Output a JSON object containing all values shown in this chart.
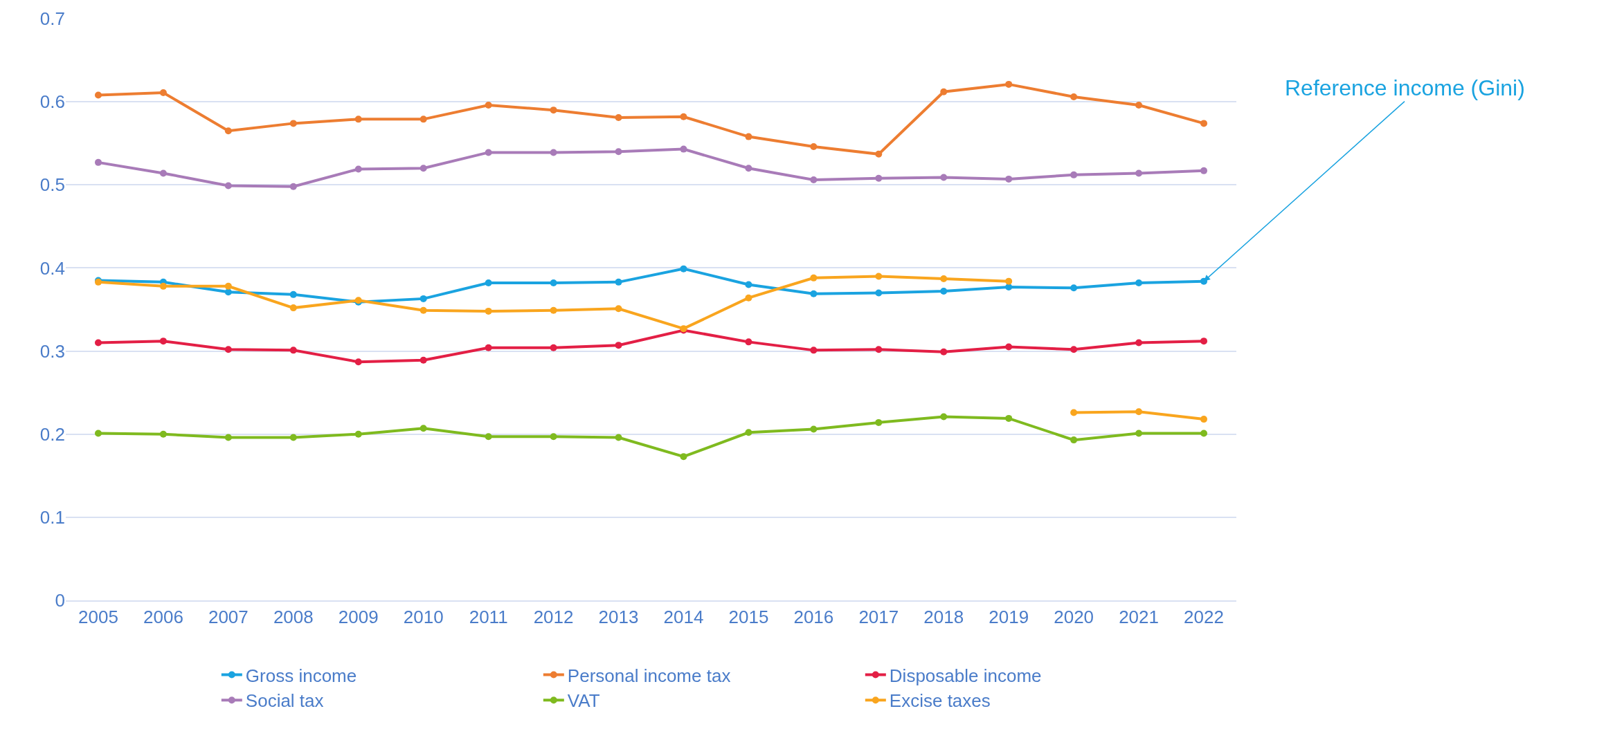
{
  "chart_data": {
    "type": "line",
    "categories": [
      "2005",
      "2006",
      "2007",
      "2008",
      "2009",
      "2010",
      "2011",
      "2012",
      "2013",
      "2014",
      "2015",
      "2016",
      "2017",
      "2018",
      "2019",
      "2020",
      "2021",
      "2022"
    ],
    "series": [
      {
        "name": "Gross income",
        "color": "#1aa3e0",
        "values": [
          0.385,
          0.383,
          0.371,
          0.368,
          0.359,
          0.363,
          0.382,
          0.382,
          0.383,
          0.399,
          0.38,
          0.369,
          0.37,
          0.372,
          0.377,
          0.376,
          0.382,
          0.384
        ]
      },
      {
        "name": "Personal income tax",
        "color": "#ed7d31",
        "values": [
          0.608,
          0.611,
          0.565,
          0.574,
          0.579,
          0.579,
          0.596,
          0.59,
          0.581,
          0.582,
          0.558,
          0.546,
          0.537,
          0.612,
          0.621,
          0.606,
          0.596,
          0.574
        ]
      },
      {
        "name": "Disposable income",
        "color": "#e31f45",
        "values": [
          0.31,
          0.312,
          0.302,
          0.301,
          0.287,
          0.289,
          0.304,
          0.304,
          0.307,
          0.325,
          0.311,
          0.301,
          0.302,
          0.299,
          0.305,
          0.302,
          0.31,
          0.312
        ]
      },
      {
        "name": "Social tax",
        "color": "#a87bb8",
        "values": [
          0.527,
          0.514,
          0.499,
          0.498,
          0.519,
          0.52,
          0.539,
          0.539,
          0.54,
          0.543,
          0.52,
          0.506,
          0.508,
          0.509,
          0.507,
          0.512,
          0.514,
          0.517
        ]
      },
      {
        "name": "VAT",
        "color": "#7fba1f",
        "values": [
          0.201,
          0.2,
          0.196,
          0.196,
          0.2,
          0.207,
          0.197,
          0.197,
          0.196,
          0.173,
          0.202,
          0.206,
          0.214,
          0.221,
          0.219,
          0.193,
          0.201,
          0.201
        ]
      },
      {
        "name": "Excise taxes",
        "color": "#f9a51e",
        "values": [
          0.383,
          0.378,
          0.378,
          0.352,
          0.361,
          0.349,
          0.348,
          0.349,
          0.351,
          0.327,
          0.364,
          0.388,
          0.39,
          0.387,
          0.384,
          null,
          null,
          null
        ]
      },
      {
        "color": "#f9a51e",
        "values": [
          null,
          null,
          null,
          null,
          null,
          null,
          null,
          null,
          null,
          null,
          null,
          null,
          null,
          null,
          null,
          0.226,
          0.227,
          0.218
        ]
      }
    ],
    "ylim": [
      0,
      0.7
    ],
    "yticks": [
      0,
      0.1,
      0.2,
      0.3,
      0.4,
      0.5,
      0.6,
      0.7
    ],
    "grid": "y",
    "legend": "bottom",
    "marker": "circle",
    "line_style": "solid",
    "annotations": [
      {
        "text": "Reference income (Gini)",
        "x": "2022",
        "y": 0.384
      }
    ]
  }
}
